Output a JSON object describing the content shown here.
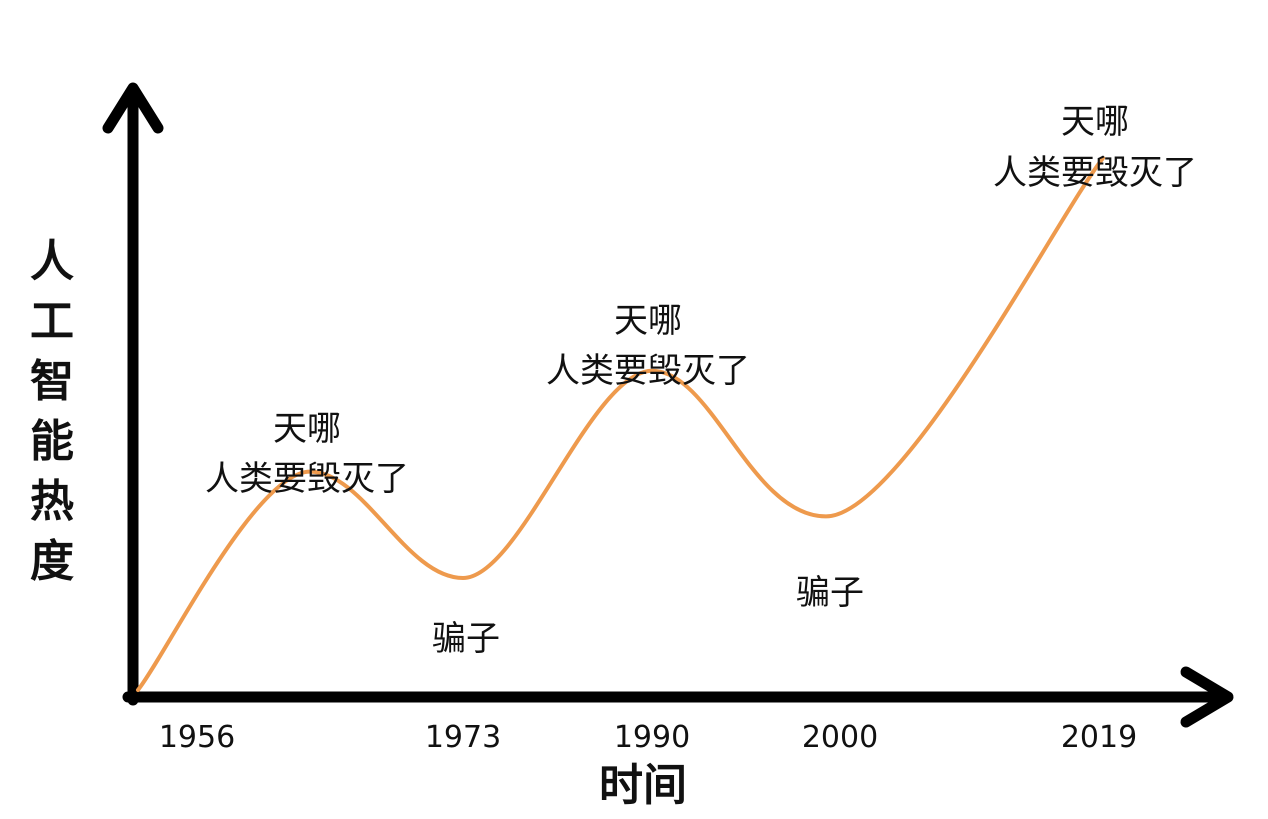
{
  "chart_data": {
    "type": "line",
    "xlabel": "时间",
    "ylabel": "人工智能热度",
    "x_ticks": [
      "1956",
      "1973",
      "1990",
      "2000",
      "2019"
    ],
    "xlim": [
      1956,
      2022
    ],
    "ylim": [
      0,
      10
    ],
    "series": [
      {
        "color": "#EE9A4D",
        "points": [
          {
            "x": 1956,
            "y": 0
          },
          {
            "x": 1964,
            "y": 3.9
          },
          {
            "x": 1973,
            "y": 2.0
          },
          {
            "x": 1984,
            "y": 5.7
          },
          {
            "x": 2000,
            "y": 3.1
          },
          {
            "x": 2019,
            "y": 9.5
          }
        ]
      }
    ],
    "annotations": [
      {
        "lines": [
          "天哪",
          "人类要毁灭了"
        ],
        "x": 1964,
        "y": 3.9,
        "position": "above"
      },
      {
        "lines": [
          "骗子"
        ],
        "x": 1973,
        "y": 2.0,
        "position": "below"
      },
      {
        "lines": [
          "天哪",
          "人类要毁灭了"
        ],
        "x": 1984,
        "y": 5.7,
        "position": "above"
      },
      {
        "lines": [
          "骗子"
        ],
        "x": 2000,
        "y": 3.1,
        "position": "below"
      },
      {
        "lines": [
          "天哪",
          "人类要毁灭了"
        ],
        "x": 2019,
        "y": 9.5,
        "position": "above"
      }
    ],
    "grid": false,
    "legend": "none"
  }
}
